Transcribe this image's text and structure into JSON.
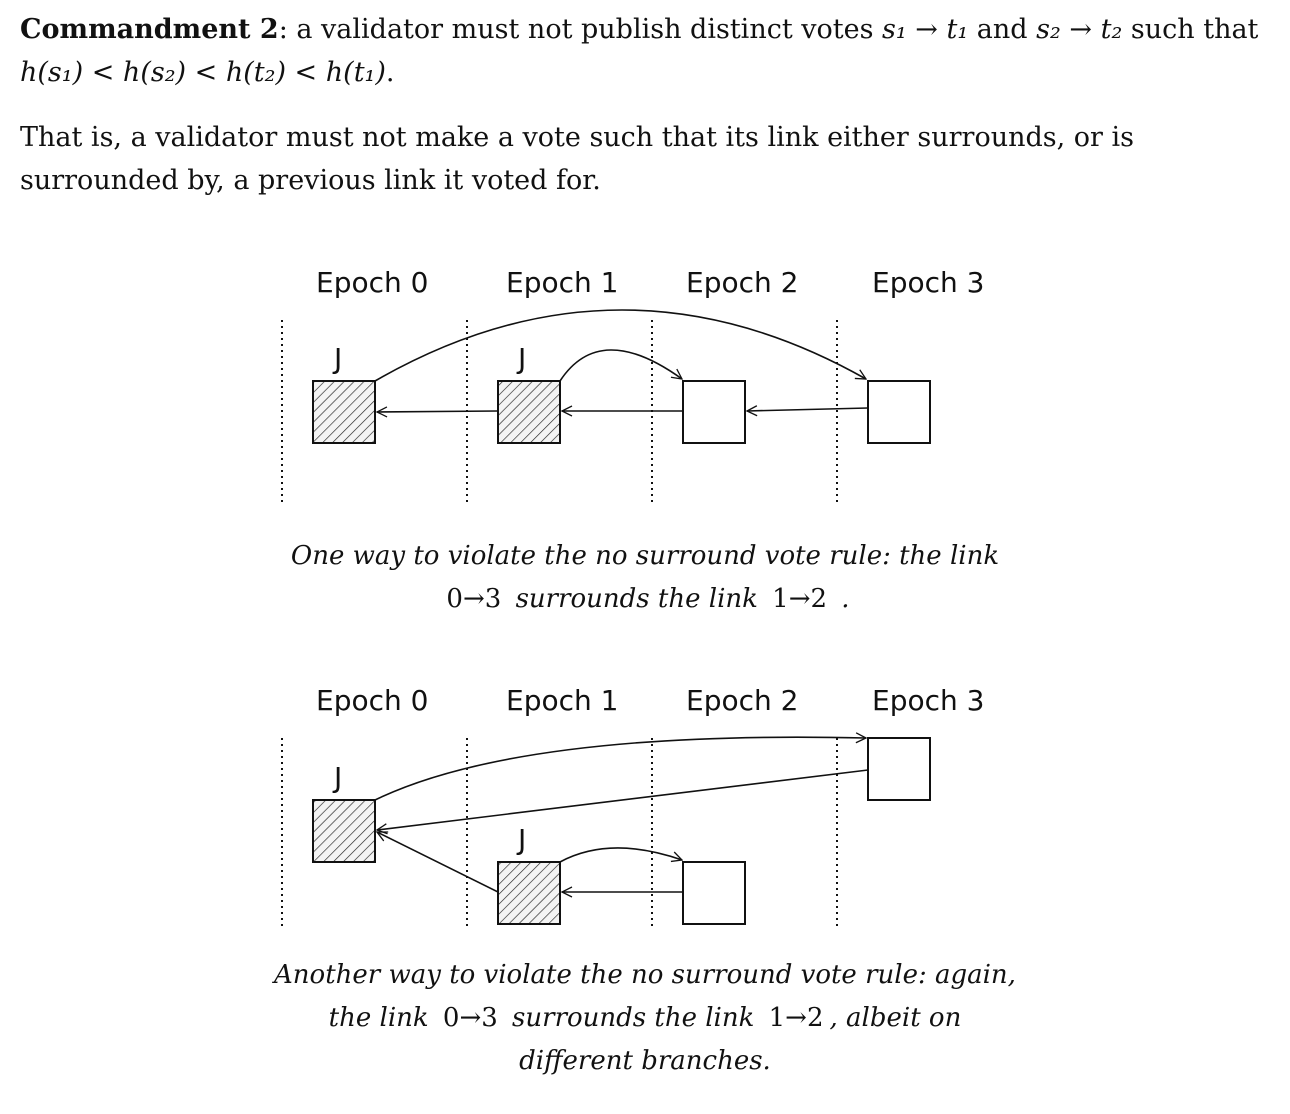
{
  "commandment": {
    "label": "Commandment 2",
    "text_a": ": a validator must not publish distinct votes ",
    "vote1": "s₁ → t₁",
    "text_b": " and ",
    "vote2": "s₂ → t₂",
    "text_c": " such that ",
    "condition": "h(s₁) < h(s₂) < h(t₂) < h(t₁)",
    "text_d": "."
  },
  "explanation": "That is, a validator must not make a vote such that its link either surrounds, or is surrounded by, a previous link it voted for.",
  "figure1": {
    "epochs": [
      "Epoch 0",
      "Epoch 1",
      "Epoch 2",
      "Epoch 3"
    ],
    "justified_label": "J",
    "caption": {
      "part1": "One way to violate the no surround vote rule: the link",
      "link_outer": "0→3",
      "part2": "surrounds the link",
      "link_inner": "1→2",
      "part3": "."
    }
  },
  "figure2": {
    "epochs": [
      "Epoch 0",
      "Epoch 1",
      "Epoch 2",
      "Epoch 3"
    ],
    "justified_label": "J",
    "caption": {
      "part1": "Another way to violate the no surround vote rule: again,",
      "part2": "the link",
      "link_outer": "0→3",
      "part3": "surrounds the link",
      "link_inner": "1→2",
      "part4": ", albeit on",
      "part5": "different branches."
    }
  }
}
